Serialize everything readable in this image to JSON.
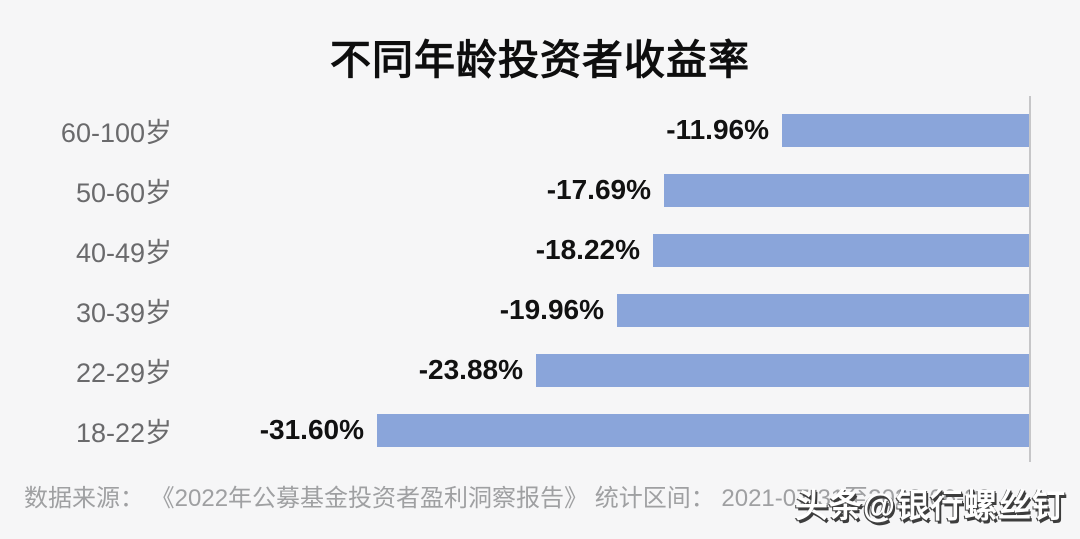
{
  "page": {
    "background": "#F6F6F7"
  },
  "chart_data": {
    "type": "bar",
    "orientation": "horizontal",
    "title": "不同年龄投资者收益率",
    "categories": [
      "60-100岁",
      "50-60岁",
      "40-49岁",
      "30-39岁",
      "22-29岁",
      "18-22岁"
    ],
    "values": [
      -11.96,
      -17.69,
      -18.22,
      -19.96,
      -23.88,
      -31.6
    ],
    "value_labels": [
      "-11.96%",
      "-17.69%",
      "-18.22%",
      "-19.96%",
      "-23.88%",
      "-31.60%"
    ],
    "unit": "%",
    "xlim": [
      -32,
      0
    ],
    "grid": false,
    "legend": false,
    "xlabel": "",
    "ylabel": "",
    "bar_color": "#8AA5DA",
    "axis_line_color": "#C6C6C8",
    "value_label_color": "#111111",
    "category_label_color": "#6A6A6C"
  },
  "footer": {
    "source_note": "数据来源： 《2022年公募基金投资者盈利洞察报告》 统计区间： 2021-07-31至2022-06-30"
  },
  "watermark": {
    "text": "头条@银行螺丝钉"
  }
}
